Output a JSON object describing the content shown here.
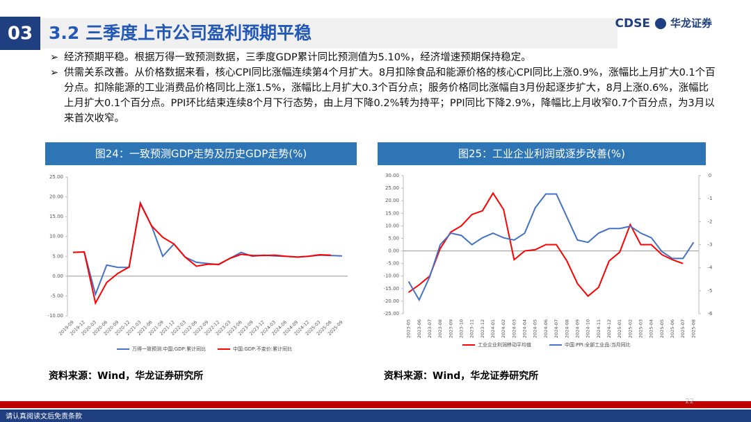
{
  "header": {
    "section": "03",
    "title": "3.2 三季度上市公司盈利预期平稳",
    "logo_en": "CDSE",
    "logo_cn": "华龙证券"
  },
  "bullets": [
    "经济预期平稳。根据万得一致预测数据，三季度GDP累计同比预测值为5.10%，经济增速预期保持稳定。",
    "供需关系改善。从价格数据来看，核心CPI同比涨幅连续第4个月扩大。8月扣除食品和能源价格的核心CPI同比上涨0.9%，涨幅比上月扩大0.1个百分点。扣除能源的工业消费品价格同比上涨1.5%，涨幅比上月扩大0.3个百分点；服务价格同比涨幅自3月份起逐步扩大，8月上涨0.6%，涨幅比上月扩大0.1个百分点。PPI环比结束连续8个月下行态势，由上月下降0.2%转为持平；PPI同比下降2.9%，降幅比上月收窄0.7个百分点，为3月以来首次收窄。"
  ],
  "chart_data": [
    {
      "type": "line",
      "title": "图24：一致预测GDP走势及历史GDP走势(%)",
      "source": "资料来源：Wind，华龙证券研究所",
      "categories": [
        "2019-09",
        "2019-12",
        "2020-03",
        "2020-06",
        "2020-09",
        "2020-12",
        "2021-03",
        "2021-06",
        "2021-09",
        "2021-12",
        "2022-03",
        "2022-06",
        "2022-09",
        "2022-12",
        "2023-03",
        "2023-06",
        "2023-09",
        "2023-12",
        "2024-03",
        "2024-06",
        "2024-09",
        "2024-12",
        "2025-03",
        "2025-06",
        "2025-09"
      ],
      "series": [
        {
          "name": "万得一致预测:中国:GDP:累计同比",
          "color": "#4472c4",
          "values": [
            6.0,
            6.1,
            -4.6,
            2.8,
            2.2,
            2.2,
            18.5,
            12.7,
            5.0,
            8.1,
            4.8,
            3.5,
            3.2,
            2.9,
            4.5,
            6.0,
            5.0,
            5.3,
            5.1,
            5.0,
            4.8,
            5.0,
            5.3,
            5.2,
            5.1
          ]
        },
        {
          "name": "中国:GDP:不变价:累计同比",
          "color": "#ff0000",
          "values": [
            6.0,
            6.1,
            -6.8,
            -1.6,
            0.7,
            2.3,
            18.3,
            12.7,
            9.8,
            8.1,
            4.8,
            2.5,
            3.0,
            3.0,
            4.5,
            5.5,
            5.2,
            5.2,
            5.3,
            5.0,
            4.8,
            5.0,
            5.4,
            5.3,
            null
          ]
        }
      ],
      "ylim": [
        -10,
        25
      ],
      "yticks": [
        {
          "value": -10,
          "label": "-10.00"
        },
        {
          "value": -5,
          "label": "-5.00"
        },
        {
          "value": 0,
          "label": "0.00"
        },
        {
          "value": 5,
          "label": "5.00"
        },
        {
          "value": 10,
          "label": "10.00"
        },
        {
          "value": 15,
          "label": "15.00"
        },
        {
          "value": 20,
          "label": "20.00"
        },
        {
          "value": 25,
          "label": "25.00"
        }
      ]
    },
    {
      "type": "line",
      "title": "图25：工业企业利润或逐步改善(%)",
      "source": "资料来源：Wind，华龙证券研究所",
      "categories": [
        "2023-05",
        "2023-06",
        "2023-07",
        "2023-08",
        "2023-09",
        "2023-10",
        "2023-11",
        "2023-12",
        "2024-01",
        "2024-02",
        "2024-03",
        "2024-04",
        "2024-05",
        "2024-06",
        "2024-07",
        "2024-08",
        "2024-09",
        "2024-10",
        "2024-11",
        "2024-12",
        "2025-01",
        "2025-02",
        "2025-03",
        "2025-04",
        "2025-05",
        "2025-06",
        "2025-07",
        "2025-08"
      ],
      "series": [
        {
          "name": "工业企业利润移动平均值",
          "color": "#ff0000",
          "values": [
            -16.5,
            -13.5,
            -10,
            1,
            7.5,
            10,
            14.5,
            16,
            23,
            16.5,
            -3.5,
            0,
            0.5,
            2.5,
            2.5,
            -4,
            -13,
            -18,
            -14.5,
            -4,
            -0.5,
            10.5,
            2.5,
            2.5,
            -1.5,
            -3.5,
            -5,
            null
          ]
        },
        {
          "name": "中国:PPI:全部工业品:当月同比",
          "color": "#4472c4",
          "axis": "y2",
          "values": [
            -4.6,
            -5.4,
            -4.4,
            -3.0,
            -2.5,
            -2.6,
            -3.0,
            -2.7,
            -2.5,
            -2.7,
            -2.8,
            -2.5,
            -1.4,
            -0.8,
            -0.8,
            -1.8,
            -2.8,
            -2.9,
            -2.5,
            -2.3,
            -2.3,
            -2.2,
            -2.5,
            -2.7,
            -3.3,
            -3.6,
            -3.6,
            -2.9
          ]
        }
      ],
      "ylim": [
        -25,
        30
      ],
      "yticks": [
        {
          "value": -25,
          "label": "-25.00"
        },
        {
          "value": -20,
          "label": "-20.00"
        },
        {
          "value": -15,
          "label": "-15.00"
        },
        {
          "value": -10,
          "label": "-10.00"
        },
        {
          "value": -5,
          "label": "-5.00"
        },
        {
          "value": 0,
          "label": "0.00"
        },
        {
          "value": 5,
          "label": "5.00"
        },
        {
          "value": 10,
          "label": "10.00"
        },
        {
          "value": 15,
          "label": "15.00"
        },
        {
          "value": 20,
          "label": "20.00"
        },
        {
          "value": 25,
          "label": "25.00"
        },
        {
          "value": 30,
          "label": "30.00"
        }
      ],
      "y2lim": [
        -6,
        0
      ],
      "y2ticks": [
        -6,
        -5,
        -4,
        -3,
        -2,
        -1,
        0
      ]
    }
  ],
  "footer": {
    "disclaimer": "请认真阅读文后免责条款",
    "page": "22"
  }
}
